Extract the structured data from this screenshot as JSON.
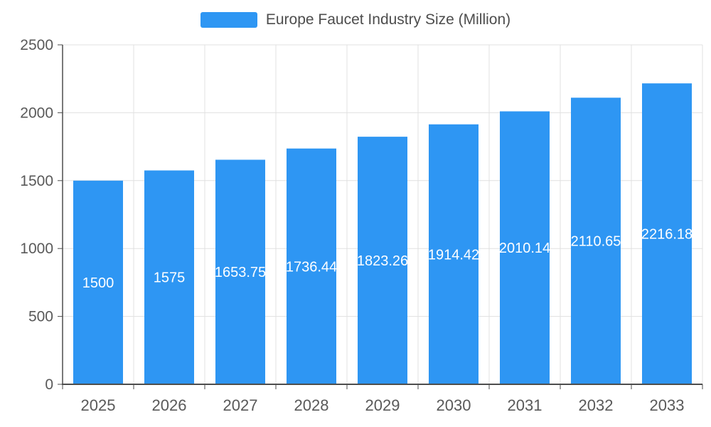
{
  "chart_data": {
    "type": "bar",
    "title": "Europe Faucet Industry Size (Million)",
    "categories": [
      "2025",
      "2026",
      "2027",
      "2028",
      "2029",
      "2030",
      "2031",
      "2032",
      "2033"
    ],
    "values": [
      1500,
      1575,
      1653.75,
      1736.44,
      1823.26,
      1914.42,
      2010.14,
      2110.65,
      2216.18
    ],
    "value_labels": [
      "1500",
      "1575",
      "1653.75",
      "1736.44",
      "1823.26",
      "1914.42",
      "2010.14",
      "2110.65",
      "2216.18"
    ],
    "xlabel": "",
    "ylabel": "",
    "ylim": [
      0,
      2500
    ],
    "yticks": [
      0,
      500,
      1000,
      1500,
      2000,
      2500
    ],
    "grid": true,
    "legend_position": "top",
    "bar_color": "#2e96f3",
    "label_color": "#ffffff",
    "grid_color": "#e0e0e0",
    "axis_color": "#4d4d4d",
    "axis_text_color": "#595959"
  }
}
